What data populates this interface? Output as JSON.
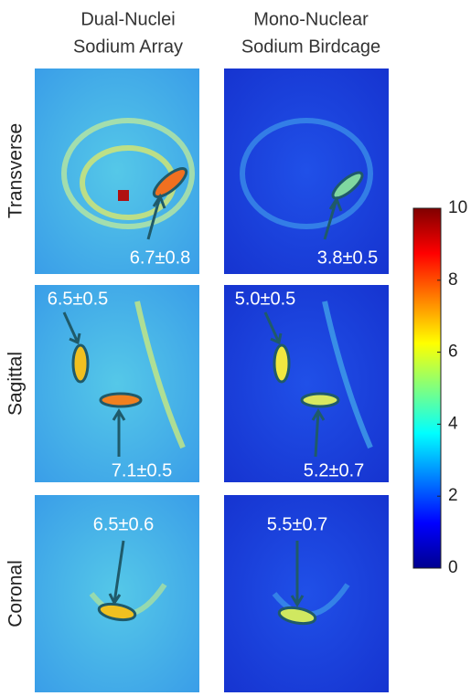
{
  "columns": [
    [
      "Dual-Nuclei",
      "Sodium Array"
    ],
    [
      "Mono-Nuclear",
      "Sodium Birdcage"
    ]
  ],
  "rows": [
    "Transverse",
    "Sagittal",
    "Coronal"
  ],
  "panels": [
    [
      [
        "6.7±0.8"
      ],
      [
        "3.8±0.5"
      ]
    ],
    [
      [
        "6.5±0.5",
        "7.1±0.5"
      ],
      [
        "5.0±0.5",
        "5.2±0.7"
      ]
    ],
    [
      [
        "6.5±0.6"
      ],
      [
        "5.5±0.7"
      ]
    ]
  ],
  "colorbar": {
    "range": [
      0,
      10
    ],
    "ticks": [
      0,
      2,
      4,
      6,
      8,
      10
    ]
  }
}
